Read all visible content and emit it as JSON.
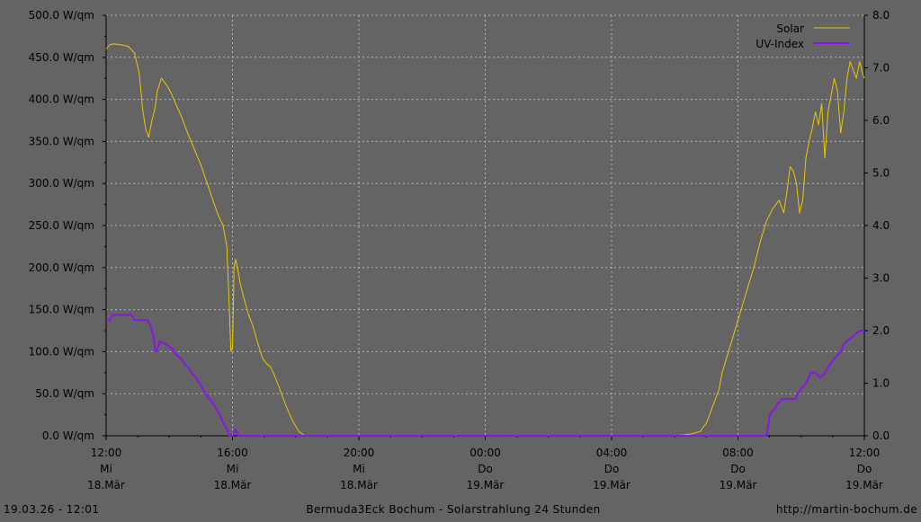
{
  "footer": {
    "timestamp": "19.03.26 - 12:01",
    "title": "Bermuda3Eck Bochum - Solarstrahlung 24 Stunden",
    "url": "http://martin-bochum.de"
  },
  "colors": {
    "background": "#646464",
    "plot_background": "#646464",
    "grid": "#b4b4b4",
    "axis": "#000000",
    "solar": "#e8c800",
    "uv": "#8c14e6"
  },
  "chart_data": {
    "type": "line",
    "title": "",
    "xlabel": "",
    "grid": true,
    "legend_position": "top-right",
    "x_unit": "hours since 18.03 12:00",
    "xlim": [
      0,
      24
    ],
    "x_ticks": [
      {
        "x": 0,
        "time": "12:00",
        "weekday": "Mi",
        "date": "18.Mär"
      },
      {
        "x": 4,
        "time": "16:00",
        "weekday": "Mi",
        "date": "18.Mär"
      },
      {
        "x": 8,
        "time": "20:00",
        "weekday": "Mi",
        "date": "18.Mär"
      },
      {
        "x": 12,
        "time": "00:00",
        "weekday": "Do",
        "date": "19.Mär"
      },
      {
        "x": 16,
        "time": "04:00",
        "weekday": "Do",
        "date": "19.Mär"
      },
      {
        "x": 20,
        "time": "08:00",
        "weekday": "Do",
        "date": "19.Mär"
      },
      {
        "x": 24,
        "time": "12:00",
        "weekday": "Do",
        "date": "19.Mär"
      }
    ],
    "y_left": {
      "ylim": [
        0,
        500
      ],
      "ticks": [
        "0.0 W/qm",
        "50.0 W/qm",
        "100.0 W/qm",
        "150.0 W/qm",
        "200.0 W/qm",
        "250.0 W/qm",
        "300.0 W/qm",
        "350.0 W/qm",
        "400.0 W/qm",
        "450.0 W/qm",
        "500.0 W/qm"
      ]
    },
    "y_right": {
      "ylim": [
        0,
        8
      ],
      "ticks": [
        "0.0",
        "1.0",
        "2.0",
        "3.0",
        "4.0",
        "5.0",
        "6.0",
        "7.0",
        "8.0"
      ]
    },
    "series": [
      {
        "name": "Solar",
        "axis": "left",
        "color": "#e8c800",
        "x": [
          0,
          0.12,
          0.25,
          0.45,
          0.7,
          0.9,
          1.05,
          1.15,
          1.25,
          1.35,
          1.45,
          1.55,
          1.62,
          1.75,
          1.85,
          1.95,
          2.05,
          2.2,
          2.4,
          2.6,
          2.8,
          3.0,
          3.2,
          3.4,
          3.55,
          3.7,
          3.82,
          3.9,
          3.95,
          4.0,
          4.05,
          4.1,
          4.18,
          4.25,
          4.35,
          4.5,
          4.65,
          4.8,
          4.95,
          5.1,
          5.2,
          5.35,
          5.5,
          5.7,
          5.9,
          6.1,
          6.3,
          6.5,
          6.7,
          6.9,
          7.0,
          7.2,
          10.0,
          14.0,
          18.0,
          18.5,
          18.8,
          19.0,
          19.2,
          19.4,
          19.5,
          19.7,
          19.9,
          20.1,
          20.3,
          20.5,
          20.7,
          20.9,
          21.1,
          21.3,
          21.45,
          21.55,
          21.65,
          21.75,
          21.85,
          21.95,
          22.05,
          22.15,
          22.25,
          22.35,
          22.45,
          22.55,
          22.65,
          22.75,
          22.85,
          22.95,
          23.05,
          23.15,
          23.25,
          23.35,
          23.45,
          23.55,
          23.65,
          23.75,
          23.85,
          23.95,
          24.0
        ],
        "y": [
          460,
          465,
          466,
          465,
          463,
          455,
          430,
          390,
          365,
          355,
          375,
          390,
          410,
          425,
          420,
          415,
          408,
          395,
          378,
          358,
          340,
          322,
          300,
          278,
          262,
          250,
          225,
          150,
          100,
          105,
          200,
          210,
          195,
          180,
          165,
          145,
          130,
          110,
          92,
          85,
          82,
          70,
          55,
          35,
          18,
          5,
          0,
          0,
          0,
          0,
          0,
          0,
          0,
          0,
          0,
          2,
          5,
          15,
          35,
          55,
          75,
          100,
          125,
          150,
          175,
          200,
          230,
          255,
          270,
          280,
          265,
          290,
          320,
          315,
          300,
          265,
          280,
          330,
          350,
          365,
          385,
          370,
          395,
          330,
          385,
          405,
          425,
          410,
          360,
          385,
          425,
          445,
          435,
          425,
          445,
          430,
          425
        ]
      },
      {
        "name": "UV-Index",
        "axis": "right",
        "color": "#8c14e6",
        "x": [
          0,
          0.12,
          0.2,
          0.8,
          0.9,
          1.3,
          1.4,
          1.5,
          1.55,
          1.6,
          1.7,
          2.0,
          2.1,
          2.2,
          2.4,
          2.5,
          2.6,
          2.7,
          2.85,
          3.0,
          3.1,
          3.2,
          3.35,
          3.5,
          3.6,
          3.7,
          3.85,
          3.9,
          3.95,
          4.0,
          4.05,
          4.08,
          4.12,
          4.18,
          10.0,
          14.0,
          19.5,
          20.9,
          21.0,
          21.05,
          21.15,
          21.25,
          21.4,
          21.6,
          21.8,
          22.0,
          22.1,
          22.2,
          22.3,
          22.45,
          22.6,
          22.7,
          22.8,
          22.9,
          23.1,
          23.25,
          23.35,
          23.45,
          23.55,
          23.65,
          23.75,
          23.85,
          23.95,
          24.0
        ],
        "y": [
          2.2,
          2.2,
          2.3,
          2.3,
          2.2,
          2.2,
          2.1,
          1.9,
          1.65,
          1.6,
          1.8,
          1.7,
          1.65,
          1.55,
          1.45,
          1.35,
          1.3,
          1.2,
          1.1,
          0.95,
          0.85,
          0.75,
          0.65,
          0.5,
          0.4,
          0.25,
          0.1,
          0.0,
          0.02,
          0.0,
          0.05,
          0.12,
          0.1,
          0.0,
          0.0,
          0.0,
          0.0,
          0.0,
          0.35,
          0.45,
          0.5,
          0.6,
          0.7,
          0.7,
          0.7,
          0.9,
          0.95,
          1.05,
          1.2,
          1.2,
          1.1,
          1.15,
          1.25,
          1.35,
          1.5,
          1.6,
          1.75,
          1.8,
          1.85,
          1.9,
          1.95,
          2.0,
          2.0,
          2.0
        ]
      }
    ]
  }
}
